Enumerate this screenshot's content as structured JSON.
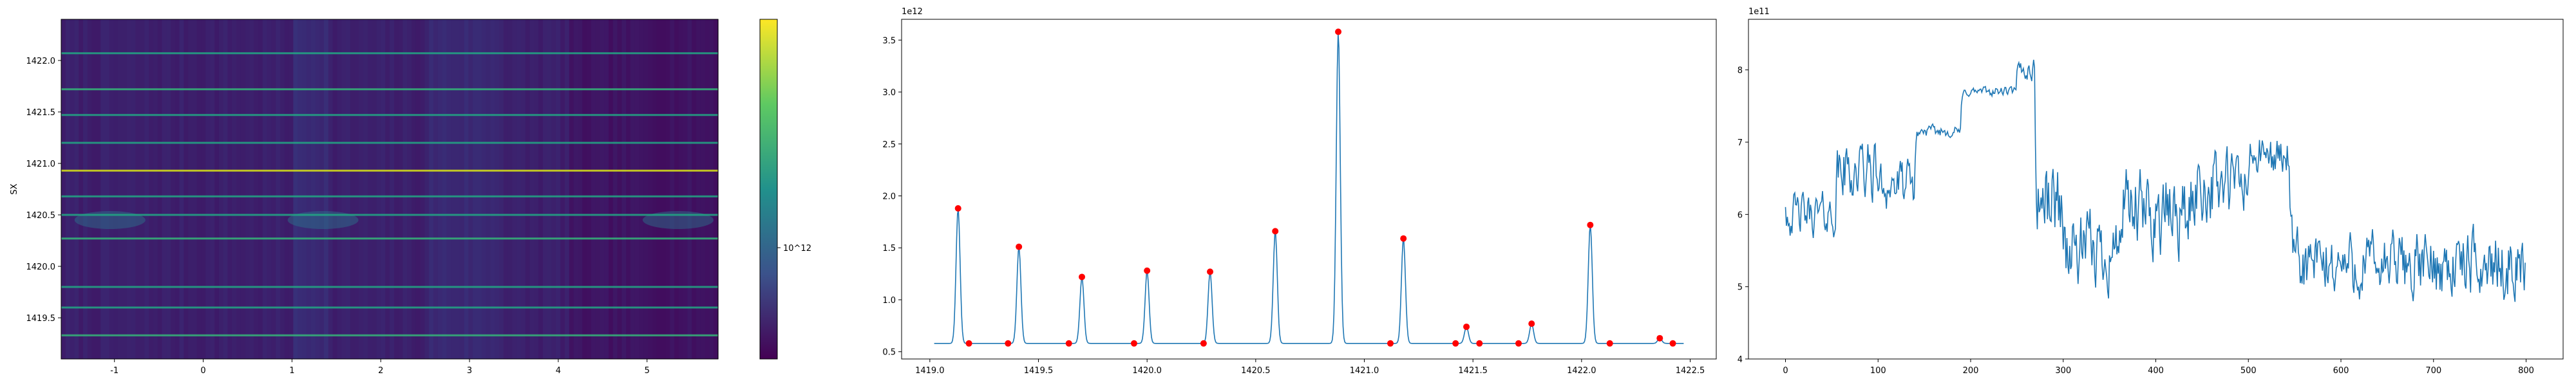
{
  "chart_data": [
    {
      "type": "heatmap",
      "title": "",
      "xlabel": "",
      "ylabel": "SX",
      "xlim": [
        -1.6,
        5.8
      ],
      "ylim": [
        1419.1,
        1422.4
      ],
      "x_ticks": [
        -1,
        0,
        1,
        2,
        3,
        4,
        5
      ],
      "y_ticks": [
        1419.5,
        1420.0,
        1420.5,
        1421.0,
        1421.5,
        1422.0
      ],
      "colormap": "viridis",
      "colorbar": {
        "scale": "log",
        "tick_label": "10^12",
        "label": ""
      },
      "bright_rows_y": [
        1419.33,
        1419.6,
        1419.8,
        1420.27,
        1420.5,
        1420.68,
        1420.93,
        1421.2,
        1421.47,
        1421.72,
        1422.07
      ],
      "column_breaks_x": [
        1.0,
        1.4,
        2.55,
        3.4,
        4.1
      ]
    },
    {
      "type": "line",
      "title": "",
      "offset_text": "1e12",
      "xlabel": "",
      "ylabel": "",
      "xlim": [
        1418.87,
        1422.62
      ],
      "ylim": [
        0.43,
        3.7
      ],
      "x_ticks": [
        1419.0,
        1419.5,
        1420.0,
        1420.5,
        1421.0,
        1421.5,
        1422.0,
        1422.5
      ],
      "y_ticks": [
        0.5,
        1.0,
        1.5,
        2.0,
        2.5,
        3.0,
        3.5
      ],
      "baseline": 0.58,
      "peak_width": 0.013,
      "x_range": [
        1419.02,
        1422.47
      ],
      "peaks": [
        {
          "x": 1419.13,
          "y": 1.88
        },
        {
          "x": 1419.41,
          "y": 1.51
        },
        {
          "x": 1419.7,
          "y": 1.22
        },
        {
          "x": 1420.0,
          "y": 1.28
        },
        {
          "x": 1420.29,
          "y": 1.27
        },
        {
          "x": 1420.59,
          "y": 1.66
        },
        {
          "x": 1420.88,
          "y": 3.58
        },
        {
          "x": 1421.18,
          "y": 1.59
        },
        {
          "x": 1421.47,
          "y": 0.74
        },
        {
          "x": 1421.77,
          "y": 0.77
        },
        {
          "x": 1422.04,
          "y": 1.72
        },
        {
          "x": 1422.36,
          "y": 0.63
        }
      ],
      "marked_points": [
        {
          "x": 1419.13,
          "y": 1.88
        },
        {
          "x": 1419.18,
          "y": 0.58
        },
        {
          "x": 1419.36,
          "y": 0.58
        },
        {
          "x": 1419.41,
          "y": 1.51
        },
        {
          "x": 1419.64,
          "y": 0.58
        },
        {
          "x": 1419.7,
          "y": 1.22
        },
        {
          "x": 1419.94,
          "y": 0.58
        },
        {
          "x": 1420.0,
          "y": 1.28
        },
        {
          "x": 1420.26,
          "y": 0.58
        },
        {
          "x": 1420.29,
          "y": 1.27
        },
        {
          "x": 1420.59,
          "y": 1.66
        },
        {
          "x": 1420.88,
          "y": 3.58
        },
        {
          "x": 1421.12,
          "y": 0.58
        },
        {
          "x": 1421.18,
          "y": 1.59
        },
        {
          "x": 1421.42,
          "y": 0.58
        },
        {
          "x": 1421.47,
          "y": 0.74
        },
        {
          "x": 1421.53,
          "y": 0.58
        },
        {
          "x": 1421.71,
          "y": 0.58
        },
        {
          "x": 1421.77,
          "y": 0.77
        },
        {
          "x": 1422.04,
          "y": 1.72
        },
        {
          "x": 1422.13,
          "y": 0.58
        },
        {
          "x": 1422.36,
          "y": 0.63
        },
        {
          "x": 1422.42,
          "y": 0.58
        }
      ]
    },
    {
      "type": "line",
      "title": "",
      "offset_text": "1e11",
      "xlabel": "",
      "ylabel": "",
      "xlim": [
        -40,
        840
      ],
      "ylim": [
        4.0,
        8.7
      ],
      "x_ticks": [
        0,
        100,
        200,
        300,
        400,
        500,
        600,
        700,
        800
      ],
      "y_ticks": [
        4,
        5,
        6,
        7,
        8
      ],
      "n_points": 800,
      "segments": [
        {
          "x0": 0,
          "x1": 55,
          "mean": 6.0,
          "amp": 0.45
        },
        {
          "x0": 55,
          "x1": 100,
          "mean": 6.6,
          "amp": 0.65
        },
        {
          "x0": 100,
          "x1": 140,
          "mean": 6.4,
          "amp": 0.5
        },
        {
          "x0": 140,
          "x1": 190,
          "mean": 7.15,
          "amp": 0.12
        },
        {
          "x0": 190,
          "x1": 250,
          "mean": 7.7,
          "amp": 0.1
        },
        {
          "x0": 250,
          "x1": 270,
          "mean": 8.0,
          "amp": 0.25
        },
        {
          "x0": 270,
          "x1": 300,
          "mean": 6.2,
          "amp": 0.9
        },
        {
          "x0": 300,
          "x1": 360,
          "mean": 5.5,
          "amp": 0.8
        },
        {
          "x0": 360,
          "x1": 440,
          "mean": 6.0,
          "amp": 0.9
        },
        {
          "x0": 440,
          "x1": 500,
          "mean": 6.4,
          "amp": 0.8
        },
        {
          "x0": 500,
          "x1": 545,
          "mean": 6.8,
          "amp": 0.45
        },
        {
          "x0": 545,
          "x1": 800,
          "mean": 5.3,
          "amp": 0.7
        }
      ]
    }
  ]
}
